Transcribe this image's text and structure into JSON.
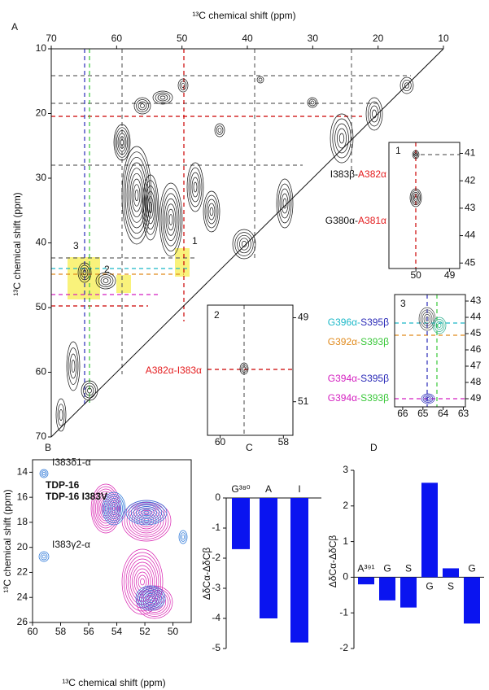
{
  "chart_data": [
    {
      "type": "spectrum",
      "panel_label": "A",
      "xlabel": "¹³C chemical shift (ppm)",
      "ylabel": "¹³C chemical shift (ppm)",
      "xlim": [
        70,
        10
      ],
      "xticks": [
        70,
        60,
        50,
        40,
        30,
        20,
        10
      ],
      "ylim": [
        10,
        70
      ],
      "yticks": [
        10,
        20,
        30,
        40,
        50,
        60,
        70
      ],
      "annotations": [
        "1",
        "2",
        "3"
      ]
    },
    {
      "type": "spectrum",
      "panel_label": "1",
      "xlim": [
        50.8,
        48.7
      ],
      "xticks": [
        50,
        49
      ],
      "ylim": [
        40.6,
        45.2
      ],
      "yticks": [
        41,
        42,
        43,
        44,
        45
      ],
      "labels": [
        {
          "parts": [
            "I383β-",
            "A382α"
          ],
          "colors": [
            "#111111",
            "#e41a1c"
          ]
        },
        {
          "parts": [
            "G380α-",
            "A381α"
          ],
          "colors": [
            "#111111",
            "#e41a1c"
          ]
        }
      ]
    },
    {
      "type": "spectrum",
      "panel_label": "2",
      "xlim": [
        60.4,
        57.7
      ],
      "xticks": [
        60,
        58
      ],
      "ylim": [
        48.7,
        51.8
      ],
      "yticks": [
        49,
        51
      ],
      "labels": [
        {
          "parts": [
            "A382α-I383α"
          ],
          "colors": [
            "#e41a1c"
          ]
        }
      ]
    },
    {
      "type": "spectrum",
      "panel_label": "3",
      "xlim": [
        66.4,
        62.9
      ],
      "xticks": [
        66,
        65,
        64,
        63
      ],
      "ylim": [
        42.6,
        49.5
      ],
      "yticks": [
        43,
        44,
        45,
        46,
        47,
        48,
        49
      ],
      "labels": [
        {
          "parts": [
            "G396α-",
            "S395β"
          ],
          "colors": [
            "#1bb8c8",
            "#2b2bb8"
          ]
        },
        {
          "parts": [
            "G392α-",
            "S393β"
          ],
          "colors": [
            "#e08a1c",
            "#3ac83a"
          ]
        },
        {
          "parts": [
            "G394α-",
            "S395β"
          ],
          "colors": [
            "#d41fc0",
            "#2b2bb8"
          ]
        },
        {
          "parts": [
            "G394α-",
            "S393β"
          ],
          "colors": [
            "#d41fc0",
            "#3ac83a"
          ]
        }
      ]
    },
    {
      "type": "spectrum",
      "panel_label": "B",
      "xlabel": "¹³C chemical shift (ppm)",
      "ylabel": "¹³C chemical shift (ppm)",
      "xlim": [
        60,
        48.7
      ],
      "xticks": [
        60,
        58,
        56,
        54,
        52,
        50
      ],
      "ylim": [
        13,
        26
      ],
      "yticks": [
        14,
        16,
        18,
        20,
        22,
        24,
        26
      ],
      "legend": [
        {
          "name": "TDP-16",
          "color": "#1f3fd6"
        },
        {
          "name": "TDP-16 I383V",
          "color": "#d81fb0"
        }
      ],
      "annotations": [
        "I383δ1-α",
        "I383γ2-α"
      ]
    },
    {
      "type": "bar",
      "panel_label": "C",
      "ylabel": "ΔδCα-ΔδCβ",
      "categories": [
        "G³⁸⁰",
        "A",
        "I"
      ],
      "values": [
        -1.7,
        -4.0,
        -4.8
      ],
      "color": "#0a14f0",
      "ylim": [
        -5,
        0
      ],
      "yticks": [
        0,
        -1,
        -2,
        -3,
        -4,
        -5
      ]
    },
    {
      "type": "bar",
      "panel_label": "D",
      "ylabel": "ΔδCα-ΔδCβ",
      "categories": [
        "A³⁹¹",
        "G",
        "S",
        "G",
        "S",
        "G"
      ],
      "values": [
        -0.2,
        -0.65,
        -0.85,
        2.65,
        0.25,
        -1.3
      ],
      "color": "#0a14f0",
      "ylim": [
        -2,
        3
      ],
      "yticks": [
        -2,
        -1,
        0,
        1,
        2,
        3
      ]
    }
  ]
}
